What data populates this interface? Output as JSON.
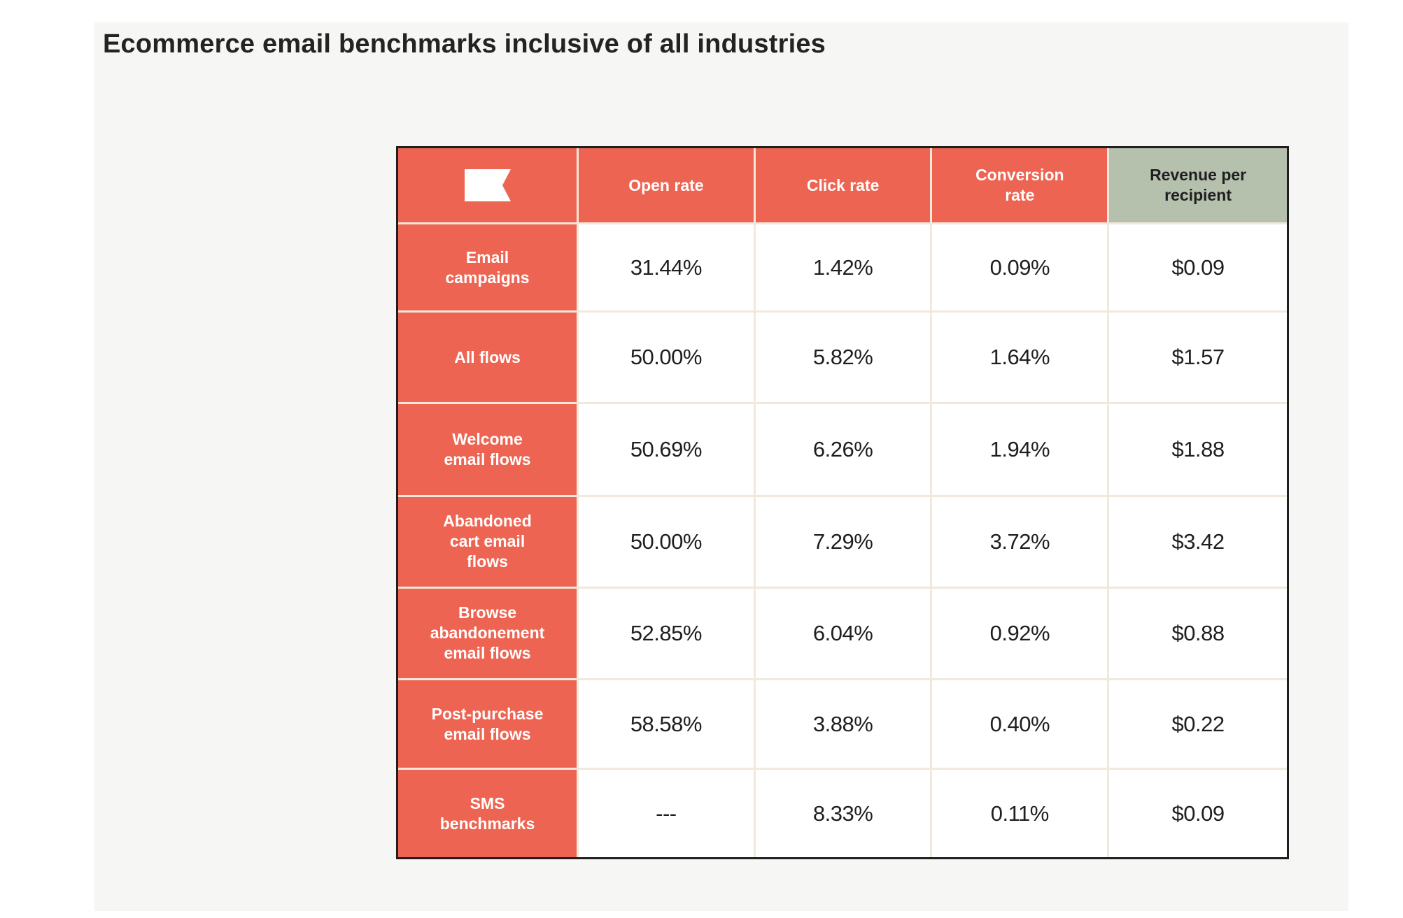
{
  "chart_data": {
    "type": "table",
    "title": "Ecommerce email benchmarks inclusive of all industries",
    "logo": "flag-logo-icon",
    "columns": [
      "Open rate",
      "Click rate",
      "Conversion rate",
      "Revenue per recipient"
    ],
    "rows": [
      {
        "label": "Email campaigns",
        "values": [
          "31.44%",
          "1.42%",
          "0.09%",
          "$0.09"
        ]
      },
      {
        "label": "All flows",
        "values": [
          "50.00%",
          "5.82%",
          "1.64%",
          "$1.57"
        ]
      },
      {
        "label": "Welcome email flows",
        "values": [
          "50.69%",
          "6.26%",
          "1.94%",
          "$1.88"
        ]
      },
      {
        "label": "Abandoned cart email flows",
        "values": [
          "50.00%",
          "7.29%",
          "3.72%",
          "$3.42"
        ]
      },
      {
        "label": "Browse abandonement email flows",
        "values": [
          "52.85%",
          "6.04%",
          "0.92%",
          "$0.88"
        ]
      },
      {
        "label": "Post-purchase email flows",
        "values": [
          "58.58%",
          "3.88%",
          "0.40%",
          "$0.22"
        ]
      },
      {
        "label": "SMS benchmarks",
        "values": [
          "---",
          "8.33%",
          "0.11%",
          "$0.09"
        ]
      }
    ],
    "colors": {
      "header_accent": "#ee6452",
      "revenue_header": "#b5c0ad",
      "cell_background": "#ffffff",
      "grid_line": "#f0e9dc",
      "outer_border": "#1f1f1f"
    }
  }
}
